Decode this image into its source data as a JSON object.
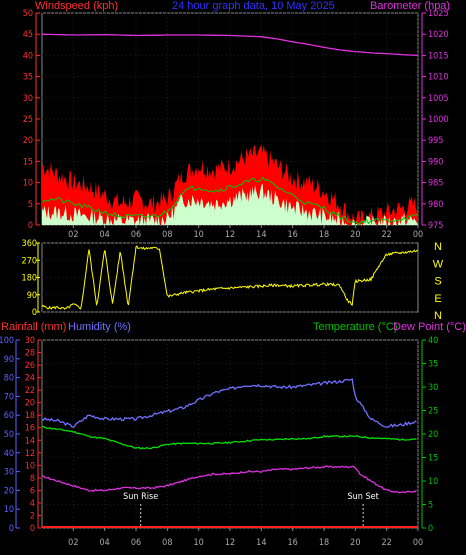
{
  "header": {
    "left_label": "Windspeed (kph)",
    "title": "24 hour graph data, 10 May 2025",
    "right_label": "Barometer (hpa)"
  },
  "bottom_header": {
    "rainfall": "Rainfall (mm)",
    "humidity": "Humidity (%)",
    "temperature": "Temperature (°C)",
    "dewpoint": "Dew Point (°C)"
  },
  "colors": {
    "wind_gust": "#ff0000",
    "wind_avg": "#00c800",
    "wind_speed": "#ccffcc",
    "barometer": "#e030e0",
    "direction": "#ffff00",
    "humidity": "#7070ff",
    "temperature": "#00e000",
    "dewpoint": "#e030e0",
    "rainfall": "#ff2020",
    "axis_left": "#ff3030",
    "axis_right_top": "#e030e0",
    "axis_humidity": "#6060ff",
    "axis_temp": "#00c000"
  },
  "chart_data": [
    {
      "type": "area",
      "x_ticks": [
        "02",
        "04",
        "06",
        "08",
        "10",
        "12",
        "14",
        "16",
        "18",
        "20",
        "22",
        "00"
      ],
      "left_axis": {
        "ticks": [
          0,
          5,
          10,
          15,
          20,
          25,
          30,
          35,
          40,
          45,
          50
        ],
        "ylim": [
          0,
          50
        ]
      },
      "right_axis": {
        "ticks": [
          975,
          980,
          985,
          990,
          995,
          1000,
          1005,
          1010,
          1015,
          1020,
          1025
        ],
        "ylim": [
          975,
          1025
        ]
      },
      "series": [
        {
          "name": "Barometer (hpa)",
          "hours": [
            0,
            2,
            4,
            6,
            8,
            10,
            12,
            14,
            15,
            16,
            17,
            18,
            19,
            20,
            21,
            22,
            23,
            24
          ],
          "values": [
            1020,
            1019.8,
            1019.9,
            1019.7,
            1019.8,
            1019.8,
            1019.7,
            1019.4,
            1018.9,
            1018.2,
            1017.6,
            1016.9,
            1016.3,
            1015.9,
            1015.6,
            1015.4,
            1015.2,
            1015.0
          ]
        },
        {
          "hours": [
            0,
            1,
            2,
            3,
            4,
            5,
            6,
            7,
            8,
            9,
            10,
            11,
            12,
            13,
            14,
            15,
            16,
            17,
            18,
            19,
            20,
            21,
            22,
            23,
            24
          ],
          "values": [
            14,
            12,
            10,
            9,
            7,
            5,
            6,
            5,
            6,
            12,
            14,
            13,
            14,
            16,
            17,
            14,
            11,
            10,
            8,
            5,
            1,
            2,
            3,
            4,
            5
          ]
        },
        {
          "hours": [
            0,
            1,
            2,
            3,
            4,
            5,
            6,
            7,
            8,
            9,
            10,
            11,
            12,
            13,
            14,
            15,
            16,
            17,
            18,
            19,
            20,
            21,
            22,
            23,
            24
          ],
          "values": [
            6,
            6,
            5,
            4,
            3,
            2,
            2,
            2,
            3,
            8,
            9,
            8,
            9,
            10,
            11,
            9,
            7,
            5,
            4,
            2,
            0.5,
            1,
            1,
            1.5,
            2
          ]
        },
        {
          "hours": [
            0,
            1,
            2,
            3,
            4,
            5,
            6,
            7,
            8,
            9,
            10,
            11,
            12,
            13,
            14,
            15,
            16,
            17,
            18,
            19,
            20,
            21,
            22,
            23,
            24
          ],
          "values": [
            3,
            3,
            2.5,
            2,
            1.5,
            1,
            1,
            1,
            1.5,
            6,
            6,
            5,
            6,
            7,
            8,
            6,
            4,
            3,
            2,
            1,
            0,
            0.5,
            0.5,
            1,
            1
          ]
        }
      ]
    },
    {
      "type": "line",
      "ylim": [
        0,
        360
      ],
      "y_ticks": [
        0,
        90,
        180,
        270,
        360
      ],
      "compass_labels": [
        "N",
        "W",
        "S",
        "E",
        "N"
      ],
      "series": [
        {
          "name": "Wind direction (°)",
          "hours": [
            0,
            0.5,
            1,
            1.5,
            2,
            2.5,
            3,
            3.5,
            4,
            4.5,
            5,
            5.5,
            6,
            6.5,
            7,
            7.5,
            8,
            9,
            10,
            11,
            12,
            13,
            14,
            15,
            16,
            17,
            18,
            19,
            19.5,
            19.8,
            20,
            21,
            21.5,
            22,
            23,
            24
          ],
          "values": [
            30,
            20,
            25,
            15,
            40,
            20,
            330,
            30,
            330,
            40,
            320,
            30,
            340,
            330,
            335,
            330,
            80,
            100,
            110,
            120,
            125,
            130,
            135,
            140,
            135,
            140,
            145,
            140,
            60,
            40,
            160,
            170,
            240,
            300,
            310,
            320
          ]
        }
      ]
    },
    {
      "type": "line",
      "x_ticks": [
        "02",
        "04",
        "06",
        "08",
        "10",
        "12",
        "14",
        "16",
        "18",
        "20",
        "22",
        "00"
      ],
      "rain_axis": {
        "ticks": [
          0,
          2,
          4,
          6,
          8,
          10,
          12,
          14,
          16,
          18,
          20,
          22,
          24,
          26,
          28,
          30
        ],
        "ylim": [
          0,
          30
        ]
      },
      "humidity_axis": {
        "ticks": [
          0,
          10,
          20,
          30,
          40,
          50,
          60,
          70,
          80,
          90,
          100
        ],
        "ylim": [
          0,
          100
        ]
      },
      "temp_axis": {
        "ticks": [
          0,
          5,
          10,
          15,
          20,
          25,
          30,
          35,
          40
        ],
        "ylim": [
          0,
          40
        ]
      },
      "annotations": [
        {
          "text": "Sun Rise",
          "hour": 6.3
        },
        {
          "text": "Sun Set",
          "hour": 20.5
        }
      ],
      "series": [
        {
          "name": "Humidity (%)",
          "axis": "humidity",
          "hours": [
            0,
            1,
            2,
            3,
            4,
            5,
            6,
            7,
            8,
            9,
            10,
            11,
            12,
            13,
            14,
            15,
            16,
            17,
            18,
            19,
            19.8,
            20,
            21,
            22,
            23,
            24
          ],
          "values": [
            58,
            57,
            54,
            60,
            58,
            58,
            58,
            60,
            62,
            64,
            68,
            72,
            74,
            76,
            76,
            75,
            75,
            76,
            77,
            78,
            79,
            70,
            58,
            54,
            55,
            57
          ]
        },
        {
          "name": "Temperature (°C)",
          "axis": "temp",
          "hours": [
            0,
            1,
            2,
            3,
            4,
            5,
            6,
            7,
            8,
            9,
            10,
            11,
            12,
            13,
            14,
            15,
            16,
            17,
            18,
            19,
            20,
            21,
            22,
            23,
            24
          ],
          "values": [
            21.5,
            21,
            20.5,
            19.5,
            19,
            18,
            17,
            17,
            17.8,
            18,
            18,
            18,
            18.2,
            18.5,
            18.8,
            18.8,
            19,
            19,
            19.5,
            19.5,
            19.5,
            19.2,
            19,
            18.8,
            19
          ]
        },
        {
          "name": "Dew Point (°C)",
          "axis": "temp",
          "hours": [
            0,
            1,
            2,
            3,
            4,
            5,
            6,
            7,
            8,
            9,
            10,
            11,
            12,
            13,
            14,
            15,
            16,
            17,
            18,
            19,
            20,
            20.3,
            21,
            22,
            23,
            24
          ],
          "values": [
            11,
            10,
            9,
            8,
            8,
            8.5,
            8.5,
            8.5,
            9,
            10,
            11,
            11.5,
            11.5,
            12,
            12,
            12.5,
            12.5,
            12.8,
            13,
            13,
            13,
            11.5,
            10,
            8,
            7.5,
            8
          ]
        },
        {
          "name": "Rainfall (mm)",
          "axis": "rain",
          "hours": [
            0,
            24
          ],
          "values": [
            0,
            0
          ]
        }
      ]
    }
  ]
}
